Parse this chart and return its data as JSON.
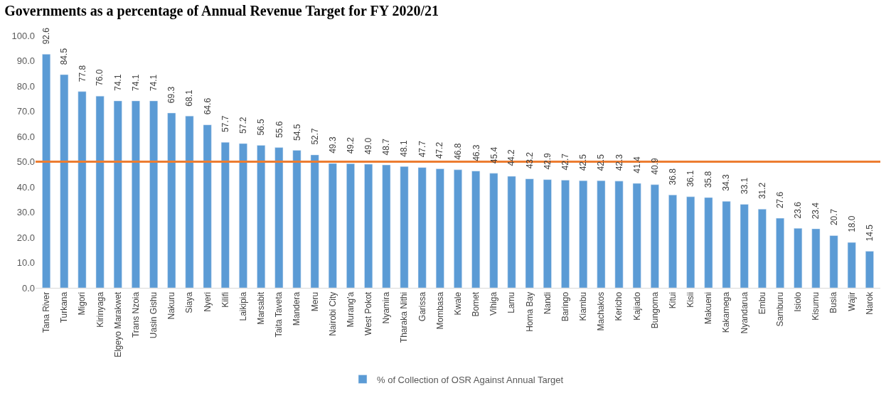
{
  "chart_data": {
    "type": "bar",
    "title": "Governments as a percentage of Annual Revenue Target for FY 2020/21",
    "categories": [
      "Tana River",
      "Turkana",
      "Migori",
      "Kirinyaga",
      "Elgeyo Marakwet",
      "Trans Nzoia",
      "Uasin Gishu",
      "Nakuru",
      "Siaya",
      "Nyeri",
      "Kilifi",
      "Laikipia",
      "Marsabit",
      "Taita Taveta",
      "Mandera",
      "Meru",
      "Nairobi City",
      "Murang'a",
      "West Pokot",
      "Nyamira",
      "Tharaka Nithi",
      "Garissa",
      "Mombasa",
      "Kwale",
      "Bomet",
      "Vihiga",
      "Lamu",
      "Homa Bay",
      "Nandi",
      "Baringo",
      "Kiambu",
      "Machakos",
      "Kericho",
      "Kajiado",
      "Bungoma",
      "Kitui",
      "Kisii",
      "Makueni",
      "Kakamega",
      "Nyandarua",
      "Embu",
      "Samburu",
      "Isiolo",
      "Kisumu",
      "Busia",
      "Wajir",
      "Narok"
    ],
    "series": [
      {
        "name": "% of Collection of OSR Against Annual Target",
        "color": "#5b9bd5",
        "values": [
          92.6,
          84.5,
          77.8,
          76.0,
          74.1,
          74.1,
          74.1,
          69.3,
          68.1,
          64.6,
          57.7,
          57.2,
          56.5,
          55.6,
          54.5,
          52.7,
          49.3,
          49.2,
          49.0,
          48.7,
          48.1,
          47.7,
          47.2,
          46.8,
          46.3,
          45.4,
          44.2,
          43.2,
          42.9,
          42.7,
          42.5,
          42.5,
          42.3,
          41.4,
          40.9,
          36.8,
          36.1,
          35.8,
          34.3,
          33.1,
          31.2,
          27.6,
          23.6,
          23.4,
          20.7,
          18.0,
          14.5
        ],
        "value_labels": [
          "92.6",
          "84.5",
          "77.8",
          "76.0",
          "74.1",
          "74.1",
          "74.1",
          "69.3",
          "68.1",
          "64.6",
          "57.7",
          "57.2",
          "56.5",
          "55.6",
          "54.5",
          "52.7",
          "49.3",
          "49.2",
          "49.0",
          "48.7",
          "48.1",
          "47.7",
          "47.2",
          "46.8",
          "46.3",
          "45.4",
          "44.2",
          "43.2",
          "42.9",
          "42.7",
          "42.5",
          "42.5",
          "42.3",
          "41.4",
          "40.9",
          "36.8",
          "36.1",
          "35.8",
          "34.3",
          "33.1",
          "31.2",
          "27.6",
          "23.6",
          "23.4",
          "20.7",
          "18.0",
          "14.5"
        ]
      }
    ],
    "ylim": [
      0,
      100
    ],
    "yticks": [
      {
        "value": 0,
        "label": "0.0"
      },
      {
        "value": 10,
        "label": "10.0"
      },
      {
        "value": 20,
        "label": "20.0"
      },
      {
        "value": 30,
        "label": "30.0"
      },
      {
        "value": 40,
        "label": "40.0"
      },
      {
        "value": 50,
        "label": "50.0"
      },
      {
        "value": 60,
        "label": "60.0"
      },
      {
        "value": 70,
        "label": "70.0"
      },
      {
        "value": 80,
        "label": "80.0"
      },
      {
        "value": 90,
        "label": "90.0"
      },
      {
        "value": 100,
        "label": "100.0"
      }
    ],
    "ref_lines": [
      {
        "axis": "y",
        "value": 50,
        "color": "#ed7d31"
      }
    ],
    "grid": false,
    "legend": "bottom"
  }
}
